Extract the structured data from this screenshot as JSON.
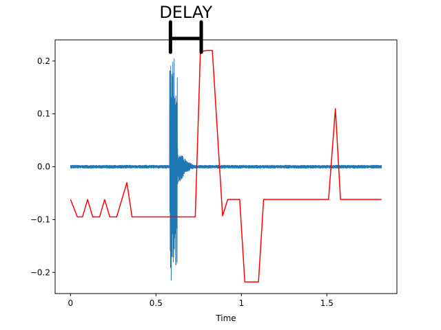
{
  "chart_data": {
    "type": "line",
    "title": "",
    "xlabel": "Time",
    "ylabel": "",
    "xlim": [
      -0.09,
      1.91
    ],
    "ylim": [
      -0.24,
      0.24
    ],
    "x_ticks": [
      0,
      0.5,
      1,
      1.5
    ],
    "x_tick_labels": [
      "0",
      "0.5",
      "1",
      "1.5"
    ],
    "y_ticks": [
      -0.2,
      -0.1,
      0.0,
      0.1,
      0.2
    ],
    "y_tick_labels": [
      "−0.2",
      "−0.1",
      "0.0",
      "0.1",
      "0.2"
    ],
    "grid": false,
    "legend": "none",
    "annotation": {
      "text": "DELAY",
      "x_start": 0.585,
      "x_end": 0.765
    },
    "series": [
      {
        "kind": "waveform",
        "color": "#1f77b4",
        "x_range": [
          0.0,
          1.82
        ],
        "baseline_amplitude": 0.003,
        "burst": {
          "start": 0.58,
          "end": 0.625,
          "peak_amplitude": 0.22,
          "decay_end": 0.75
        }
      },
      {
        "kind": "line",
        "color": "#ff0000",
        "x": [
          0.0,
          0.04,
          0.07,
          0.1,
          0.13,
          0.17,
          0.2,
          0.23,
          0.27,
          0.33,
          0.36,
          0.73,
          0.76,
          0.8,
          0.83,
          0.89,
          0.92,
          0.99,
          1.02,
          1.07,
          1.1,
          1.13,
          1.51,
          1.55,
          1.58,
          1.82
        ],
        "y": [
          -0.062,
          -0.095,
          -0.095,
          -0.062,
          -0.095,
          -0.095,
          -0.062,
          -0.095,
          -0.095,
          -0.03,
          -0.095,
          -0.095,
          0.218,
          0.22,
          0.22,
          -0.093,
          -0.062,
          -0.062,
          -0.218,
          -0.218,
          -0.218,
          -0.062,
          -0.062,
          0.11,
          -0.062,
          -0.062
        ]
      }
    ]
  }
}
